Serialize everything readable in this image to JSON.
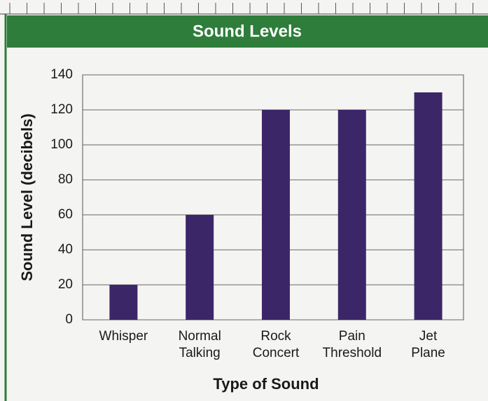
{
  "chart_data": {
    "type": "bar",
    "title": "Sound Levels",
    "categories": [
      "Whisper",
      "Normal\nTalking",
      "Rock\nConcert",
      "Pain\nThreshold",
      "Jet\nPlane"
    ],
    "values": [
      20,
      60,
      120,
      120,
      130
    ],
    "color": "#3b2768",
    "xlabel": "Type of Sound",
    "ylabel": "Sound Level (decibels)",
    "ylim": [
      0,
      140
    ],
    "yticks": [
      0,
      20,
      40,
      60,
      80,
      100,
      120,
      140
    ],
    "grid": true
  }
}
